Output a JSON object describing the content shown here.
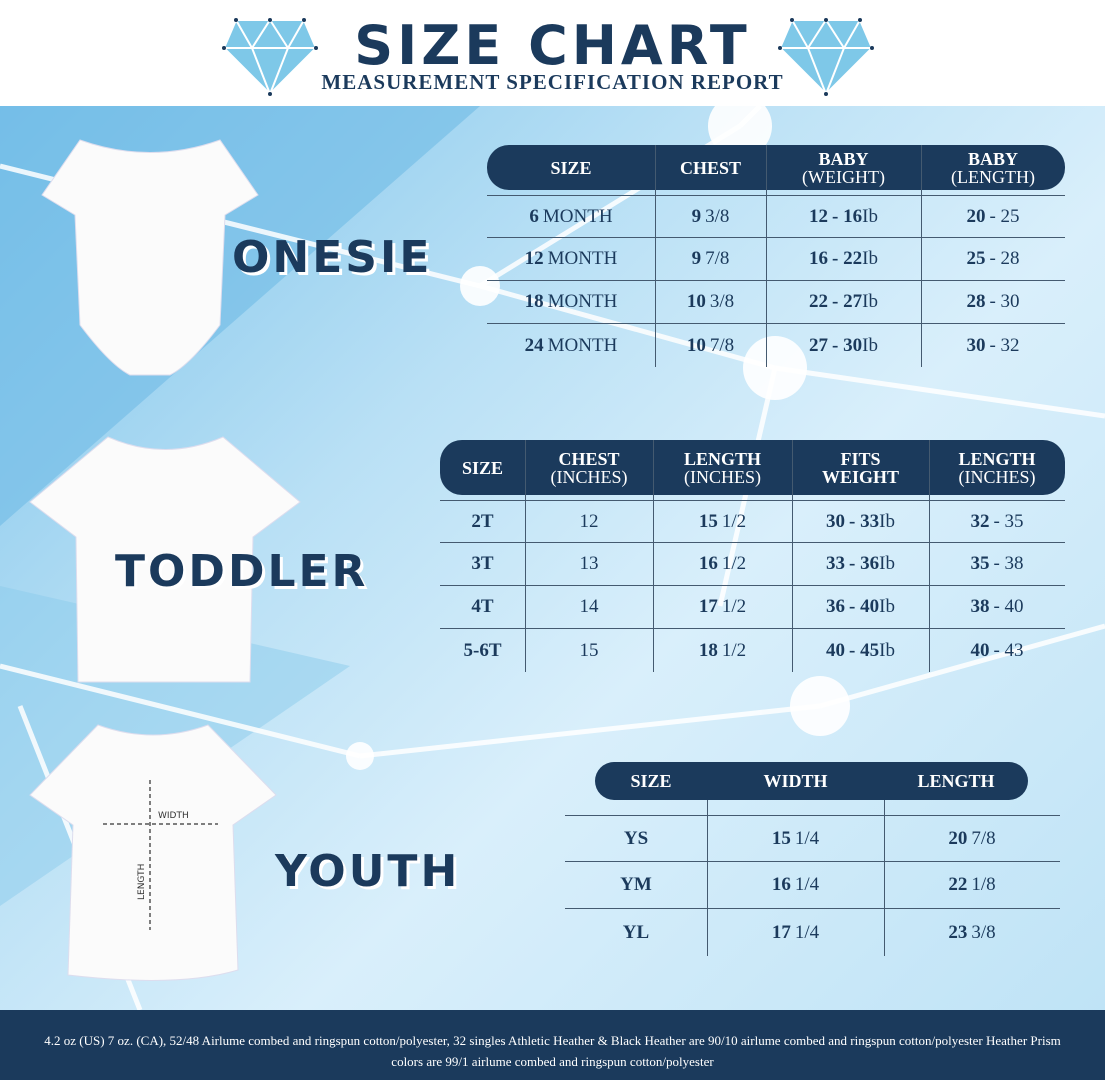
{
  "header": {
    "title": "SIZE CHART",
    "subtitle": "MEASUREMENT SPECIFICATION REPORT"
  },
  "colors": {
    "navy": "#1b3a5c",
    "diamond": "#7ec8e8",
    "background": "#b9e0f5"
  },
  "onesie": {
    "label": "ONESIE",
    "headers": [
      [
        "SIZE",
        ""
      ],
      [
        "CHEST",
        ""
      ],
      [
        "BABY",
        "(WEIGHT)"
      ],
      [
        "BABY",
        "(LENGTH)"
      ]
    ],
    "rows": [
      [
        "6 MONTH",
        "9 3/8",
        "12 - 16 Ib",
        "20 - 25"
      ],
      [
        "12 MONTH",
        "9 7/8",
        "16 - 22 Ib",
        "25 - 28"
      ],
      [
        "18  MONTH",
        "10 3/8",
        "22 - 27 Ib",
        "28 - 30"
      ],
      [
        "24 MONTH",
        "10 7/8",
        "27 - 30 Ib",
        "30 - 32"
      ]
    ]
  },
  "toddler": {
    "label": "TODDLER",
    "headers": [
      [
        "SIZE",
        ""
      ],
      [
        "CHEST",
        "(INCHES)"
      ],
      [
        "LENGTH",
        "(INCHES)"
      ],
      [
        "FITS",
        "WEIGHT"
      ],
      [
        "LENGTH",
        "(INCHES)"
      ]
    ],
    "rows": [
      [
        "2T",
        "12",
        "15 1/2",
        "30 - 33 Ib",
        "32 - 35"
      ],
      [
        "3T",
        "13",
        "16 1/2",
        "33 - 36 Ib",
        "35 - 38"
      ],
      [
        "4T",
        "14",
        "17 1/2",
        "36 - 40 Ib",
        "38 - 40"
      ],
      [
        "5-6T",
        "15",
        "18 1/2",
        "40 - 45 Ib",
        "40 - 43"
      ]
    ]
  },
  "youth": {
    "label": "YOUTH",
    "headers": [
      [
        "SIZE",
        ""
      ],
      [
        "WIDTH",
        ""
      ],
      [
        "LENGTH",
        ""
      ]
    ],
    "rows": [
      [
        "YS",
        "15 1/4",
        "20 7/8"
      ],
      [
        "YM",
        "16 1/4",
        "22 1/8"
      ],
      [
        "YL",
        "17 1/4",
        "23 3/8"
      ]
    ],
    "diagram": {
      "width": "WIDTH",
      "length": "LENGTH"
    }
  },
  "footer": {
    "text": "4.2 oz (US) 7 oz. (CA), 52/48 Airlume combed and ringspun cotton/polyester, 32 singles Athletic Heather & Black Heather are 90/10 airlume combed and ringspun cotton/polyester Heather Prism colors are 99/1 airlume combed and ringspun cotton/polyester"
  }
}
